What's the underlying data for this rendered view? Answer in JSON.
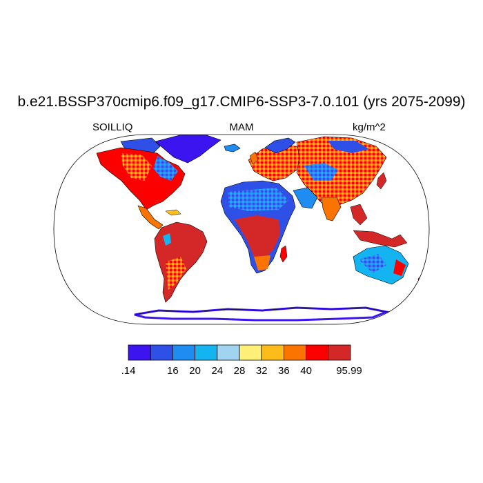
{
  "title": "b.e21.BSSP370cmip6.f09_g17.CMIP6-SSP3-7.0.101 (yrs 2075-2099)",
  "left_label": "SOILLIQ",
  "center_label": "MAM",
  "right_label": "kg/m^2",
  "colorbar": {
    "colors": [
      "#3c14f0",
      "#2e50e6",
      "#1e8cf0",
      "#14b4f0",
      "#a0d4f0",
      "#fff07a",
      "#fcbc1a",
      "#fc7400",
      "#fc0000",
      "#d42828"
    ],
    "tick_labels": [
      ".14",
      "16",
      "20",
      "24",
      "28",
      "32",
      "36",
      "40",
      "95.99"
    ]
  }
}
